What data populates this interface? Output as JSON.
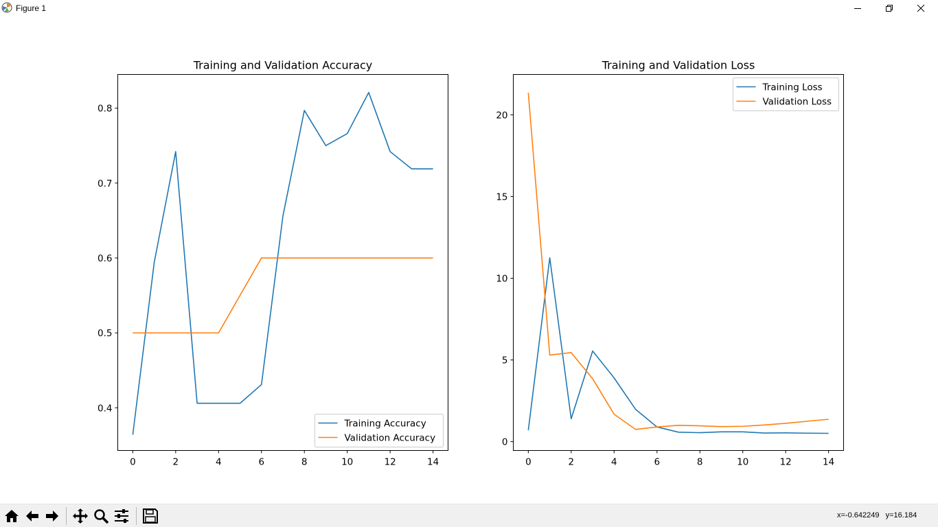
{
  "window": {
    "title": "Figure 1"
  },
  "status": {
    "coords": "x=-0.642249   y=16.184"
  },
  "toolbar": {
    "buttons": [
      "home-icon",
      "back-arrow-icon",
      "forward-arrow-icon",
      "pan-icon",
      "zoom-icon",
      "configure-subplots-icon",
      "save-icon"
    ]
  },
  "colors": {
    "series1": "#1f77b4",
    "series2": "#ff7f0e"
  },
  "chart_data": [
    {
      "type": "line",
      "title": "Training and Validation Accuracy",
      "xlabel": "",
      "ylabel": "",
      "x": [
        0,
        1,
        2,
        3,
        4,
        5,
        6,
        7,
        8,
        9,
        10,
        11,
        12,
        13,
        14
      ],
      "xlim": [
        -0.7,
        14.7
      ],
      "ylim": [
        0.343,
        0.845
      ],
      "xticks": [
        0,
        2,
        4,
        6,
        8,
        10,
        12,
        14
      ],
      "yticks": [
        0.4,
        0.5,
        0.6,
        0.7,
        0.8
      ],
      "ytick_labels": [
        "0.4",
        "0.5",
        "0.6",
        "0.7",
        "0.8"
      ],
      "legend_position": "lower-right",
      "series": [
        {
          "name": "Training Accuracy",
          "color": "#1f77b4",
          "values": [
            0.364,
            0.594,
            0.742,
            0.406,
            0.406,
            0.406,
            0.431,
            0.656,
            0.797,
            0.75,
            0.766,
            0.821,
            0.742,
            0.719,
            0.719
          ]
        },
        {
          "name": "Validation Accuracy",
          "color": "#ff7f0e",
          "values": [
            0.5,
            0.5,
            0.5,
            0.5,
            0.5,
            0.55,
            0.6,
            0.6,
            0.6,
            0.6,
            0.6,
            0.6,
            0.6,
            0.6,
            0.6
          ]
        }
      ]
    },
    {
      "type": "line",
      "title": "Training and Validation Loss",
      "xlabel": "",
      "ylabel": "",
      "x": [
        0,
        1,
        2,
        3,
        4,
        5,
        6,
        7,
        8,
        9,
        10,
        11,
        12,
        13,
        14
      ],
      "xlim": [
        -0.7,
        14.7
      ],
      "ylim": [
        -0.54,
        22.47
      ],
      "xticks": [
        0,
        2,
        4,
        6,
        8,
        10,
        12,
        14
      ],
      "yticks": [
        0,
        5,
        10,
        15,
        20
      ],
      "ytick_labels": [
        "0",
        "5",
        "10",
        "15",
        "20"
      ],
      "legend_position": "upper-right",
      "series": [
        {
          "name": "Training Loss",
          "color": "#1f77b4",
          "values": [
            0.7,
            11.25,
            1.4,
            5.55,
            3.9,
            1.98,
            0.9,
            0.58,
            0.55,
            0.6,
            0.6,
            0.53,
            0.54,
            0.52,
            0.51
          ]
        },
        {
          "name": "Validation Loss",
          "color": "#ff7f0e",
          "values": [
            21.35,
            5.3,
            5.45,
            3.85,
            1.68,
            0.75,
            0.9,
            1.0,
            0.97,
            0.92,
            0.94,
            1.02,
            1.12,
            1.25,
            1.37
          ]
        }
      ]
    }
  ]
}
